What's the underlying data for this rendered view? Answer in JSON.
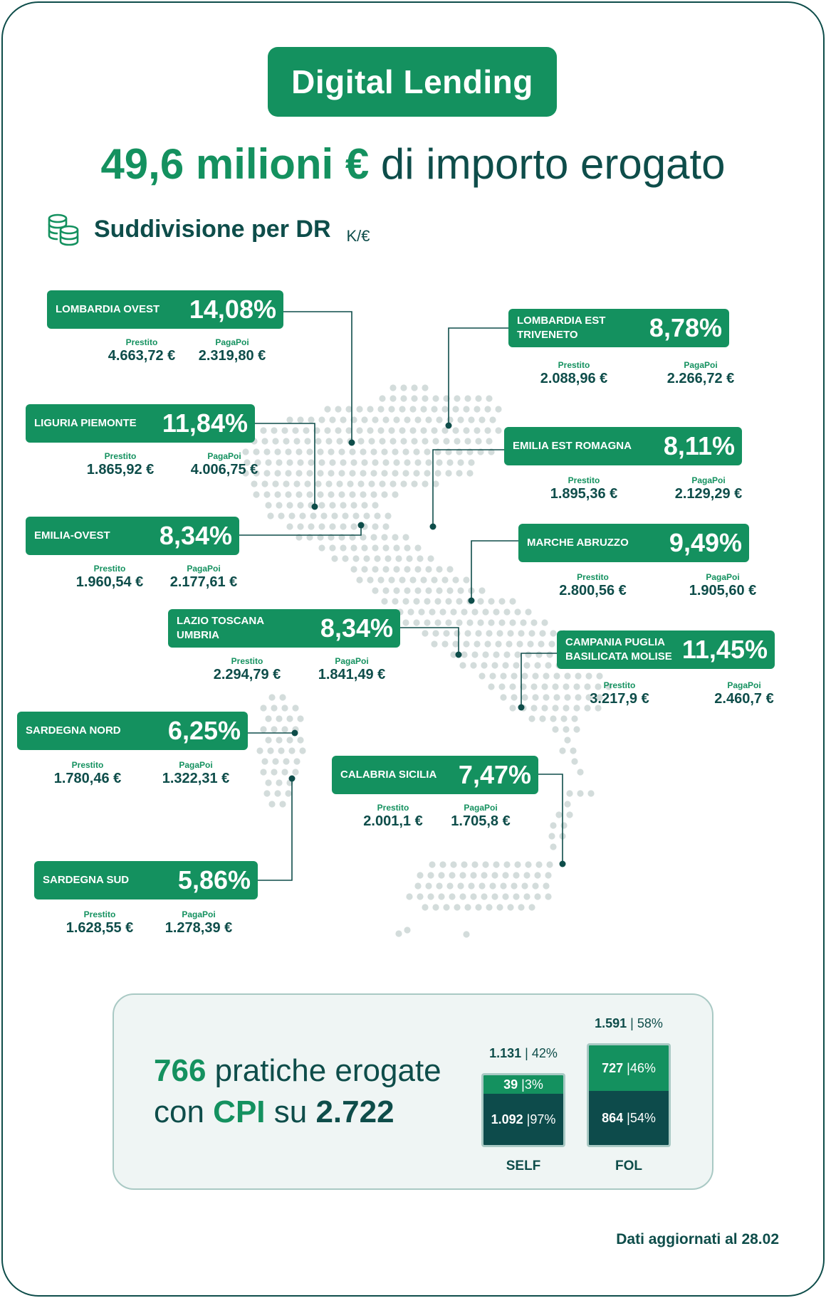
{
  "title": "Digital Lending",
  "headline": {
    "highlight": "49,6 milioni €",
    "rest": " di importo erogato"
  },
  "section": {
    "title": "Suddivisione per DR",
    "unit": "K/€",
    "icon": "coins-icon"
  },
  "labels": {
    "prestito": "Prestito",
    "pagapoi": "PagaPoi"
  },
  "regions": [
    {
      "name": "LOMBARDIA OVEST",
      "pct": "14,08%",
      "prestito": "4.663,72 €",
      "pagapoi": "2.319,80 €"
    },
    {
      "name": "LOMBARDIA EST\nTRIVENETO",
      "pct": "8,78%",
      "prestito": "2.088,96 €",
      "pagapoi": "2.266,72 €"
    },
    {
      "name": "LIGURIA PIEMONTE",
      "pct": "11,84%",
      "prestito": "1.865,92 €",
      "pagapoi": "4.006,75 €"
    },
    {
      "name": "EMILIA EST ROMAGNA",
      "pct": "8,11%",
      "prestito": "1.895,36 €",
      "pagapoi": "2.129,29 €"
    },
    {
      "name": "EMILIA-OVEST",
      "pct": "8,34%",
      "prestito": "1.960,54 €",
      "pagapoi": "2.177,61 €"
    },
    {
      "name": "MARCHE ABRUZZO",
      "pct": "9,49%",
      "prestito": "2.800,56 €",
      "pagapoi": "1.905,60 €"
    },
    {
      "name": "LAZIO TOSCANA\nUMBRIA",
      "pct": "8,34%",
      "prestito": "2.294,79 €",
      "pagapoi": "1.841,49 €"
    },
    {
      "name": "CAMPANIA PUGLIA\nBASILICATA MOLISE",
      "pct": "11,45%",
      "prestito": "3.217,9 €",
      "pagapoi": "2.460,7 €"
    },
    {
      "name": "SARDEGNA NORD",
      "pct": "6,25%",
      "prestito": "1.780,46 €",
      "pagapoi": "1.322,31 €"
    },
    {
      "name": "CALABRIA SICILIA",
      "pct": "7,47%",
      "prestito": "2.001,1 €",
      "pagapoi": "1.705,8 €"
    },
    {
      "name": "SARDEGNA SUD",
      "pct": "5,86%",
      "prestito": "1.628,55 €",
      "pagapoi": "1.278,39 €"
    }
  ],
  "cpi": {
    "count": "766",
    "line1_rest": " pratiche erogate",
    "line2_pre": "con ",
    "cpi_word": "CPI",
    "line2_mid": " su ",
    "total": "2.722"
  },
  "bars": [
    {
      "name": "SELF",
      "total": "1.131",
      "total_pct": "42%",
      "top": {
        "value": "39",
        "pct": "3%",
        "share": 3
      },
      "bottom": {
        "value": "1.092",
        "pct": "97%",
        "share": 97
      }
    },
    {
      "name": "FOL",
      "total": "1.591",
      "total_pct": "58%",
      "top": {
        "value": "727",
        "pct": "46%",
        "share": 46
      },
      "bottom": {
        "value": "864",
        "pct": "54%",
        "share": 54
      }
    }
  ],
  "colors": {
    "green": "#14915f",
    "dark": "#0e4d4a",
    "map_dot": "#d3dcdb"
  },
  "footer": "Dati aggiornati al 28.02"
}
